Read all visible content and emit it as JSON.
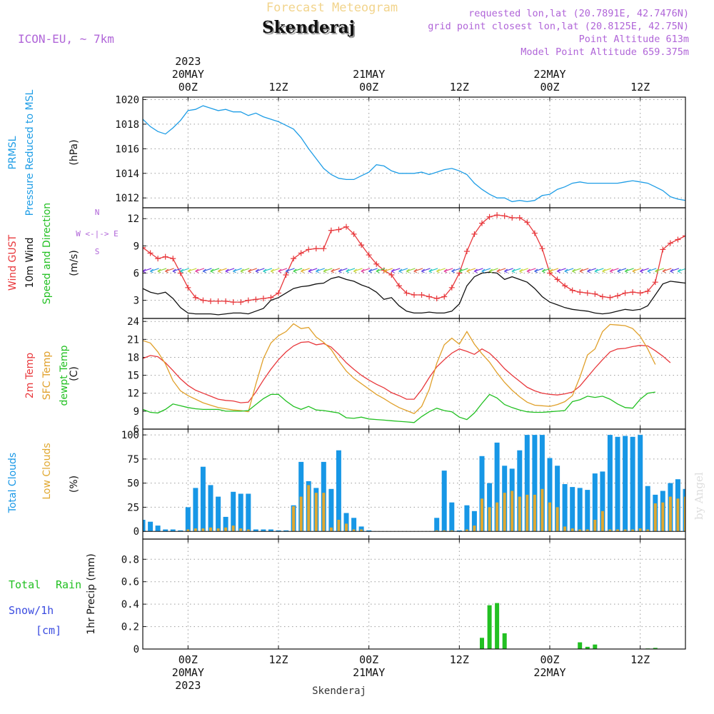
{
  "header": {
    "super_title": "Forecast Meteogram",
    "location": "Skenderaj",
    "model": "ICON-EU, ~ 7km",
    "requested": "requested lon,lat (20.7891E, 42.7476N)",
    "gridpoint": "grid point closest lon,lat (20.8125E, 42.75N)",
    "point_alt": "Point Altitude 613m",
    "model_alt": "Model Point Altitude 659.375m",
    "footer": "Skenderaj",
    "watermark": "by Angel"
  },
  "time_axis": {
    "start": "2023-05-19T18Z",
    "end": "2023-05-22T18Z",
    "top_ticks": [
      {
        "t": 6,
        "lines": [
          "2023",
          "20MAY",
          "00Z"
        ]
      },
      {
        "t": 18,
        "lines": [
          "12Z"
        ]
      },
      {
        "t": 30,
        "lines": [
          "21MAY",
          "00Z"
        ]
      },
      {
        "t": 42,
        "lines": [
          "12Z"
        ]
      },
      {
        "t": 54,
        "lines": [
          "22MAY",
          "00Z"
        ]
      },
      {
        "t": 66,
        "lines": [
          "12Z"
        ]
      }
    ],
    "bottom_ticks": [
      {
        "t": 6,
        "lines": [
          "00Z",
          "20MAY",
          "2023"
        ]
      },
      {
        "t": 18,
        "lines": [
          "12Z"
        ]
      },
      {
        "t": 30,
        "lines": [
          "00Z",
          "21MAY"
        ]
      },
      {
        "t": 42,
        "lines": [
          "12Z"
        ]
      },
      {
        "t": 54,
        "lines": [
          "00Z",
          "22MAY"
        ]
      },
      {
        "t": 66,
        "lines": [
          "12Z"
        ]
      }
    ]
  },
  "chart_data": [
    {
      "type": "line",
      "title": "PRMSL",
      "ylabel_lines": [
        "PRMSL",
        "Pressure Reduced to MSL"
      ],
      "unit": "(hPa)",
      "ylim": [
        1011.2,
        1020.2
      ],
      "yticks": [
        1012,
        1014,
        1016,
        1018,
        1020
      ],
      "series": [
        {
          "name": "PRMSL",
          "color": "#1e9de6",
          "t0": 0,
          "dt": 1,
          "values": [
            1018.4,
            1017.8,
            1017.4,
            1017.2,
            1017.7,
            1018.3,
            1019.1,
            1019.2,
            1019.5,
            1019.3,
            1019.1,
            1019.2,
            1019.0,
            1019.0,
            1018.7,
            1018.9,
            1018.6,
            1018.4,
            1018.2,
            1017.9,
            1017.6,
            1016.9,
            1016.0,
            1015.2,
            1014.4,
            1013.9,
            1013.6,
            1013.5,
            1013.5,
            1013.8,
            1014.1,
            1014.7,
            1014.6,
            1014.2,
            1014.0,
            1014.0,
            1014.0,
            1014.1,
            1013.9,
            1014.1,
            1014.3,
            1014.4,
            1014.2,
            1013.9,
            1013.2,
            1012.7,
            1012.3,
            1012.0,
            1012.0,
            1011.7,
            1011.8,
            1011.7,
            1011.8,
            1012.2,
            1012.3,
            1012.7,
            1012.9,
            1013.2,
            1013.3,
            1013.2,
            1013.2,
            1013.2,
            1013.2,
            1013.2,
            1013.3,
            1013.4,
            1013.3,
            1013.2,
            1012.9,
            1012.6,
            1012.1,
            1011.9,
            1011.8,
            1012.0,
            1012.3
          ]
        }
      ]
    },
    {
      "type": "line",
      "title": "Wind",
      "ylabel_lines": [
        "Wind GUST",
        "10m Wind",
        "Speed and Direction"
      ],
      "unit": "(m/s)",
      "compass": [
        "N",
        "W <-|-> E",
        "S"
      ],
      "ylim": [
        1.0,
        13.2
      ],
      "yticks": [
        3,
        6,
        9,
        12
      ],
      "series": [
        {
          "name": "Wind GUST",
          "color": "#e8383c",
          "t0": 0,
          "dt": 1,
          "values": [
            8.8,
            8.2,
            7.6,
            7.8,
            7.6,
            6.0,
            4.4,
            3.3,
            3.0,
            2.9,
            2.9,
            2.9,
            2.8,
            2.8,
            3.0,
            3.1,
            3.2,
            3.3,
            3.8,
            5.8,
            7.6,
            8.2,
            8.6,
            8.7,
            8.7,
            10.7,
            10.8,
            11.1,
            10.3,
            9.1,
            8.0,
            7.0,
            6.3,
            5.8,
            4.6,
            3.8,
            3.6,
            3.6,
            3.4,
            3.2,
            3.4,
            4.4,
            6.0,
            8.4,
            10.3,
            11.5,
            12.2,
            12.4,
            12.3,
            12.1,
            12.1,
            11.6,
            10.4,
            8.7,
            6.0,
            5.3,
            4.6,
            4.1,
            3.9,
            3.8,
            3.7,
            3.4,
            3.3,
            3.5,
            3.8,
            3.9,
            3.8,
            4.0,
            5.0,
            8.6,
            9.3,
            9.7,
            10.1,
            9.6,
            9.0,
            8.9,
            9.2,
            8.1
          ]
        },
        {
          "name": "10m Wind",
          "color": "#111111",
          "t0": 0,
          "dt": 1,
          "values": [
            4.3,
            3.9,
            3.7,
            3.9,
            3.2,
            2.2,
            1.6,
            1.5,
            1.5,
            1.5,
            1.4,
            1.5,
            1.6,
            1.6,
            1.5,
            1.8,
            2.1,
            3.0,
            3.3,
            3.8,
            4.3,
            4.5,
            4.6,
            4.8,
            4.9,
            5.4,
            5.6,
            5.3,
            5.1,
            4.7,
            4.4,
            3.9,
            3.1,
            3.3,
            2.4,
            1.8,
            1.6,
            1.6,
            1.7,
            1.6,
            1.6,
            1.8,
            2.6,
            4.6,
            5.6,
            6.0,
            6.1,
            6.0,
            5.3,
            5.6,
            5.3,
            5.0,
            4.3,
            3.4,
            2.8,
            2.5,
            2.2,
            2.0,
            1.9,
            1.8,
            1.6,
            1.5,
            1.6,
            1.8,
            2.0,
            1.9,
            2.0,
            2.4,
            3.6,
            4.8,
            5.1,
            5.0,
            4.9,
            4.7,
            4.9,
            4.3,
            2.6
          ]
        }
      ]
    },
    {
      "type": "line",
      "title": "Temperature",
      "ylabel_lines": [
        "2m Temp",
        "SFC Temp",
        "dewpt Temp"
      ],
      "unit": "(C)",
      "ylim": [
        6.0,
        24.5
      ],
      "yticks": [
        6,
        9,
        12,
        15,
        18,
        21,
        24
      ],
      "series": [
        {
          "name": "2m Temp",
          "color": "#e8383c",
          "t0": 0,
          "dt": 1,
          "values": [
            17.8,
            18.3,
            18.1,
            17.1,
            15.8,
            14.4,
            13.3,
            12.5,
            12.0,
            11.5,
            11.0,
            10.8,
            10.7,
            10.4,
            10.5,
            12.2,
            14.2,
            16.0,
            17.6,
            18.9,
            19.9,
            20.5,
            20.6,
            20.1,
            20.3,
            19.7,
            18.5,
            17.1,
            16.0,
            15.0,
            14.2,
            13.5,
            12.9,
            12.1,
            11.6,
            11.0,
            11.0,
            12.6,
            14.6,
            16.4,
            17.6,
            18.7,
            19.4,
            19.0,
            18.5,
            19.4,
            18.7,
            17.5,
            16.1,
            15.0,
            14.0,
            13.0,
            12.4,
            12.0,
            11.8,
            11.7,
            11.9,
            12.2,
            13.2,
            14.7,
            16.2,
            17.6,
            18.9,
            19.4,
            19.5,
            19.8,
            20.0,
            19.9,
            19.1,
            18.2,
            17.1
          ]
        },
        {
          "name": "SFC Temp",
          "color": "#e0a02a",
          "t0": 0,
          "dt": 1,
          "values": [
            20.8,
            20.4,
            18.9,
            16.9,
            14.1,
            12.4,
            11.6,
            11.0,
            10.4,
            10.0,
            9.6,
            9.4,
            9.2,
            9.1,
            8.9,
            13.5,
            17.8,
            20.4,
            21.6,
            22.3,
            23.6,
            22.8,
            23.0,
            21.4,
            20.5,
            19.3,
            17.4,
            15.7,
            14.5,
            13.6,
            12.7,
            11.8,
            11.1,
            10.3,
            9.6,
            9.1,
            8.6,
            9.8,
            12.6,
            17.0,
            20.1,
            21.2,
            20.2,
            22.3,
            20.2,
            18.6,
            17.2,
            15.4,
            13.8,
            12.5,
            11.4,
            10.5,
            10.0,
            9.9,
            9.8,
            10.1,
            10.6,
            11.6,
            14.7,
            18.4,
            19.4,
            22.3,
            23.5,
            23.4,
            23.3,
            22.8,
            21.5,
            19.4,
            16.8
          ]
        },
        {
          "name": "dewpt Temp",
          "color": "#22c022",
          "t0": 0,
          "dt": 1,
          "values": [
            9.3,
            8.8,
            8.7,
            9.3,
            10.2,
            9.9,
            9.6,
            9.4,
            9.3,
            9.3,
            9.3,
            9.0,
            9.0,
            9.0,
            9.1,
            10.1,
            11.1,
            11.8,
            11.8,
            10.7,
            9.8,
            9.3,
            9.8,
            9.2,
            9.1,
            8.9,
            8.7,
            7.9,
            7.8,
            8.0,
            7.7,
            7.6,
            7.5,
            7.4,
            7.3,
            7.2,
            7.1,
            8.1,
            8.9,
            9.5,
            9.1,
            8.9,
            8.0,
            7.6,
            8.7,
            10.3,
            11.8,
            11.2,
            10.1,
            9.6,
            9.2,
            8.9,
            8.8,
            8.8,
            8.9,
            9.0,
            9.1,
            10.6,
            10.9,
            11.5,
            11.3,
            11.5,
            11.0,
            10.2,
            9.6,
            9.5,
            11.0,
            12.0,
            12.2
          ]
        }
      ]
    },
    {
      "type": "bar",
      "title": "Clouds",
      "ylabel_lines": [
        "Total Clouds",
        "Low Clouds"
      ],
      "unit": "(%)",
      "ylim": [
        -8,
        106
      ],
      "yticks": [
        0,
        25,
        50,
        75,
        100
      ],
      "series": [
        {
          "name": "Total Clouds",
          "color": "#1797e6",
          "t0": 0,
          "dt": 1,
          "values": [
            12,
            10,
            6,
            2,
            2,
            1,
            25,
            45,
            67,
            48,
            36,
            15,
            41,
            39,
            39,
            2,
            2,
            2,
            1,
            1,
            27,
            72,
            52,
            45,
            72,
            44,
            84,
            19,
            14,
            5,
            1,
            0,
            0,
            0,
            0,
            0,
            0,
            0,
            0,
            14,
            63,
            30,
            1,
            27,
            21,
            78,
            50,
            92,
            68,
            65,
            84,
            100,
            100,
            100,
            76,
            68,
            49,
            46,
            45,
            43,
            60,
            62,
            100,
            98,
            99,
            98,
            100,
            47,
            38,
            42,
            50,
            54,
            44,
            79,
            48,
            46,
            38,
            56
          ]
        },
        {
          "name": "Low Clouds",
          "color": "#e0a830",
          "t0": 0,
          "dt": 1,
          "values": [
            0,
            0,
            0,
            0,
            0,
            0,
            2,
            3,
            3,
            4,
            3,
            4,
            6,
            3,
            2,
            0,
            0,
            0,
            0,
            0,
            26,
            36,
            48,
            40,
            40,
            4,
            12,
            8,
            2,
            2,
            0,
            0,
            0,
            0,
            0,
            0,
            0,
            0,
            0,
            1,
            1,
            1,
            0,
            2,
            6,
            34,
            25,
            30,
            40,
            42,
            36,
            38,
            38,
            44,
            30,
            25,
            5,
            3,
            2,
            2,
            12,
            21,
            2,
            2,
            2,
            2,
            3,
            2,
            29,
            30,
            36,
            34,
            36,
            52,
            38,
            30,
            10,
            0
          ]
        }
      ]
    },
    {
      "type": "bar",
      "title": "Precipitation",
      "ylabel_lines": [
        "1hr Precip (mm)"
      ],
      "legend_left": [
        "Total Rain",
        "Snow/1h",
        "[cm]"
      ],
      "ylim": [
        0,
        0.98
      ],
      "yticks": [
        0,
        0.2,
        0.4,
        0.6,
        0.8
      ],
      "series": [
        {
          "name": "Total Rain",
          "color": "#22c022",
          "t0": 0,
          "dt": 1,
          "values": [
            0,
            0,
            0,
            0,
            0,
            0,
            0,
            0,
            0,
            0,
            0,
            0,
            0,
            0,
            0,
            0,
            0,
            0,
            0,
            0,
            0,
            0,
            0,
            0,
            0,
            0,
            0,
            0,
            0,
            0,
            0,
            0,
            0,
            0,
            0,
            0,
            0,
            0,
            0,
            0,
            0,
            0,
            0,
            0,
            0,
            0.1,
            0.39,
            0.41,
            0.14,
            0,
            0,
            0,
            0,
            0,
            0,
            0,
            0,
            0,
            0.06,
            0.02,
            0.04,
            0,
            0,
            0,
            0,
            0,
            0,
            0.005,
            0.01,
            0,
            0,
            0,
            0,
            0.03,
            0.07
          ]
        }
      ]
    }
  ]
}
